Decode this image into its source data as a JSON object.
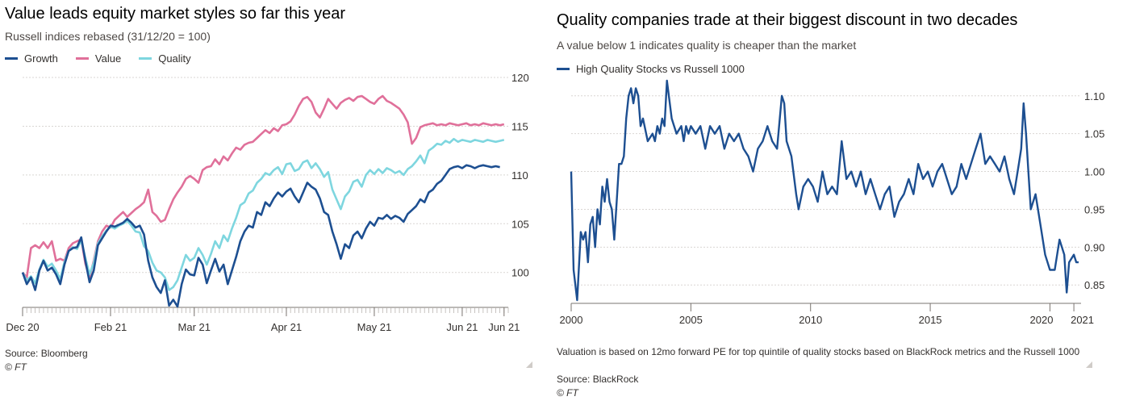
{
  "colors": {
    "growth": "#1d4f91",
    "value": "#e0709a",
    "quality": "#7ed6df",
    "hq": "#1d4f91",
    "grid": "#d9d6d3",
    "axis": "#7a7470"
  },
  "left": {
    "title": "Value leads equity market styles so far this year",
    "subtitle": "Russell indices rebased (31/12/20 = 100)",
    "legend": [
      "Growth",
      "Value",
      "Quality"
    ],
    "source": "Source: Bloomberg",
    "credit": "© FT"
  },
  "right": {
    "title": "Quality companies trade at their biggest discount in two decades",
    "subtitle": "A value below 1 indicates quality is cheaper than the market",
    "legend": [
      "High Quality Stocks vs Russell 1000"
    ],
    "note": "Valuation is based on 12mo forward PE for top quintile of quality stocks based on BlackRock metrics and the Russell 1000",
    "source": "Source: BlackRock",
    "credit": "© FT"
  },
  "chart_data": [
    {
      "type": "line",
      "title": "Value leads equity market styles so far this year",
      "subtitle": "Russell indices rebased (31/12/20 = 100)",
      "xlabel": "",
      "ylabel": "",
      "x_ticks": [
        "Dec 20",
        "Feb 21",
        "Mar 21",
        "Apr 21",
        "May 21",
        "Jun 21",
        "Jun 21"
      ],
      "x_tick_pos": [
        0,
        21,
        41,
        63,
        84,
        105,
        115
      ],
      "x_range": [
        0,
        116
      ],
      "ylim": [
        96.5,
        120.5
      ],
      "y_ticks": [
        100,
        105,
        110,
        115,
        120
      ],
      "grid": true,
      "legend_position": "top-left",
      "series": [
        {
          "name": "Growth",
          "color": "#1d4f91",
          "values": [
            100,
            98.8,
            99.5,
            98.2,
            100.2,
            101.2,
            100.2,
            100.5,
            99.8,
            98.8,
            100.8,
            102.2,
            102.5,
            102.6,
            103.6,
            101.2,
            99,
            100.2,
            102.8,
            103.5,
            104.2,
            104.8,
            104.7,
            104.9,
            105.1,
            105.5,
            105.1,
            104.6,
            104.8,
            103.9,
            101.2,
            99.5,
            98.5,
            97.9,
            99.2,
            96.6,
            97.2,
            96.5,
            98.8,
            100.3,
            99.8,
            99.7,
            101.5,
            100.8,
            98.9,
            100.2,
            101.4,
            100.1,
            100.8,
            98.8,
            100.2,
            101.6,
            103.2,
            104.2,
            104.8,
            104.6,
            106.2,
            105.9,
            107.2,
            106.8,
            107.6,
            108.2,
            107.8,
            108.3,
            108.6,
            107.8,
            107.2,
            108.2,
            109.2,
            108.8,
            108.5,
            107.6,
            106.2,
            105.9,
            104.2,
            102.9,
            101.4,
            102.9,
            102.5,
            103.8,
            104.2,
            103.5,
            104.5,
            105.2,
            104.8,
            105.6,
            105.5,
            105.9,
            105.5,
            105.8,
            105.6,
            105.2,
            106,
            106.4,
            106.8,
            107.5,
            107.2,
            108.2,
            108.5,
            109.1,
            109.4,
            110,
            110.6,
            110.8,
            110.9,
            110.7,
            111,
            110.9,
            110.7,
            110.9,
            111,
            110.9,
            110.8,
            110.9,
            110.8
          ]
        },
        {
          "name": "Value",
          "color": "#e0709a",
          "values": [
            100,
            99.5,
            102.5,
            102.8,
            102.5,
            103.1,
            102.5,
            103.2,
            101.2,
            101.4,
            101.2,
            102.5,
            103,
            103.2,
            103.4,
            100.9,
            99.5,
            101.2,
            103.2,
            104.2,
            104.8,
            104.6,
            105.4,
            105.8,
            106.2,
            105.7,
            106.1,
            106.5,
            106.8,
            107.2,
            108.5,
            106.2,
            105.8,
            105.2,
            105.4,
            106.5,
            107.5,
            108.2,
            108.8,
            109.6,
            109.9,
            109.6,
            109.2,
            110.5,
            110.8,
            110.9,
            111.6,
            111.1,
            111.9,
            111.5,
            112.2,
            112.8,
            112.6,
            113.1,
            113.3,
            113.4,
            113.8,
            114.2,
            114.6,
            114.3,
            114.8,
            114.5,
            115.1,
            115.2,
            115.5,
            116.2,
            117.1,
            117.8,
            118,
            117.5,
            116.4,
            115.9,
            116.8,
            117.8,
            117.3,
            116.8,
            117.4,
            117.7,
            117.9,
            117.6,
            118,
            118.1,
            117.8,
            117.5,
            117.3,
            117.8,
            118.1,
            117.6,
            117.4,
            117.1,
            116.8,
            116.2,
            115.4,
            113.2,
            113.8,
            114.9,
            115.1,
            115.2,
            115.3,
            115.1,
            115.2,
            115.1,
            115.3,
            115.2,
            115.1,
            115.2,
            115.3,
            115.1,
            115.2,
            115.1,
            115.3,
            115.2,
            115.1,
            115.2,
            115.1,
            115.2
          ]
        },
        {
          "name": "Quality",
          "color": "#7ed6df",
          "values": [
            100,
            99.2,
            99.6,
            98.9,
            100.3,
            101.3,
            100.6,
            100.9,
            100.2,
            99.3,
            101.1,
            102.2,
            102.6,
            102.4,
            103.3,
            101.5,
            99.8,
            101,
            103,
            103.7,
            104.3,
            104.7,
            104.5,
            104.8,
            105,
            105.3,
            104.8,
            104.2,
            104.1,
            102.7,
            102.2,
            101,
            100.2,
            100,
            99.5,
            98.2,
            98.5,
            99.2,
            100.5,
            101.8,
            101.2,
            101.5,
            102.5,
            101.8,
            100.8,
            101.9,
            103.2,
            102.5,
            103.8,
            103.2,
            104.5,
            105.6,
            106.9,
            107.2,
            108.1,
            108.4,
            109.2,
            109.6,
            110.2,
            110,
            110.5,
            110.8,
            110.1,
            111.1,
            111.2,
            110.4,
            110.6,
            111.3,
            111.5,
            110.7,
            111.2,
            110.6,
            109.8,
            110.3,
            108.5,
            107.5,
            106.5,
            107.8,
            108.3,
            109.3,
            109.5,
            108.8,
            110,
            110.5,
            110.1,
            110.6,
            110.2,
            110.7,
            110.5,
            110.2,
            110.4,
            110,
            110.6,
            110.9,
            111.4,
            112,
            111.2,
            112.5,
            112.8,
            113.2,
            113.1,
            113.5,
            113.3,
            113.7,
            113.4,
            113.6,
            113.5,
            113.4,
            113.6,
            113.5,
            113.4,
            113.6,
            113.5,
            113.4,
            113.5,
            113.6
          ]
        }
      ]
    },
    {
      "type": "line",
      "title": "Quality companies trade at their biggest discount in two decades",
      "subtitle": "A value below 1 indicates quality is cheaper than the market",
      "xlabel": "",
      "ylabel": "",
      "x_ticks": [
        2000,
        2005,
        2010,
        2015,
        2020,
        2021
      ],
      "x_range": [
        2000,
        2021.3
      ],
      "ylim": [
        0.83,
        1.12
      ],
      "y_ticks": [
        0.85,
        0.9,
        0.95,
        1.0,
        1.05,
        1.1
      ],
      "y_tick_labels": [
        "0.85",
        "0.90",
        "0.95",
        "1.00",
        "1.05",
        "1.10"
      ],
      "grid": true,
      "legend_position": "top-left",
      "series": [
        {
          "name": "High Quality Stocks vs Russell 1000",
          "color": "#1d4f91",
          "x": [
            2000,
            2000.1,
            2000.25,
            2000.4,
            2000.5,
            2000.6,
            2000.7,
            2000.8,
            2000.9,
            2001,
            2001.1,
            2001.2,
            2001.3,
            2001.4,
            2001.5,
            2001.6,
            2001.7,
            2001.8,
            2001.9,
            2002,
            2002.1,
            2002.2,
            2002.3,
            2002.4,
            2002.5,
            2002.6,
            2002.7,
            2002.8,
            2002.9,
            2003,
            2003.2,
            2003.4,
            2003.5,
            2003.6,
            2003.7,
            2003.8,
            2003.9,
            2004,
            2004.2,
            2004.4,
            2004.6,
            2004.7,
            2004.8,
            2004.9,
            2005,
            2005.2,
            2005.4,
            2005.6,
            2005.8,
            2006,
            2006.2,
            2006.4,
            2006.6,
            2006.8,
            2007,
            2007.2,
            2007.4,
            2007.6,
            2007.8,
            2008,
            2008.2,
            2008.4,
            2008.6,
            2008.8,
            2008.9,
            2009,
            2009.2,
            2009.4,
            2009.5,
            2009.7,
            2009.9,
            2010.1,
            2010.3,
            2010.5,
            2010.7,
            2010.9,
            2011.1,
            2011.3,
            2011.5,
            2011.7,
            2011.9,
            2012.1,
            2012.3,
            2012.5,
            2012.7,
            2012.9,
            2013.1,
            2013.3,
            2013.5,
            2013.7,
            2013.9,
            2014.1,
            2014.3,
            2014.5,
            2014.7,
            2014.9,
            2015.1,
            2015.3,
            2015.5,
            2015.7,
            2015.9,
            2016.1,
            2016.3,
            2016.5,
            2016.7,
            2016.9,
            2017.1,
            2017.3,
            2017.5,
            2017.7,
            2017.9,
            2018.1,
            2018.3,
            2018.5,
            2018.7,
            2018.8,
            2018.9,
            2019,
            2019.1,
            2019.2,
            2019.4,
            2019.6,
            2019.8,
            2020,
            2020.2,
            2020.4,
            2020.6,
            2020.7,
            2020.8,
            2021,
            2021.1,
            2021.2
          ],
          "values": [
            1.0,
            0.87,
            0.83,
            0.92,
            0.91,
            0.92,
            0.88,
            0.93,
            0.94,
            0.9,
            0.95,
            0.93,
            0.98,
            0.96,
            0.99,
            0.96,
            0.95,
            0.91,
            0.96,
            1.01,
            1.01,
            1.02,
            1.07,
            1.1,
            1.11,
            1.09,
            1.11,
            1.1,
            1.06,
            1.07,
            1.04,
            1.05,
            1.04,
            1.06,
            1.05,
            1.07,
            1.06,
            1.12,
            1.07,
            1.05,
            1.06,
            1.04,
            1.06,
            1.05,
            1.06,
            1.05,
            1.06,
            1.03,
            1.06,
            1.05,
            1.06,
            1.03,
            1.05,
            1.04,
            1.05,
            1.03,
            1.02,
            1.0,
            1.03,
            1.04,
            1.06,
            1.04,
            1.03,
            1.1,
            1.09,
            1.04,
            1.02,
            0.97,
            0.95,
            0.98,
            0.99,
            0.98,
            0.96,
            1.0,
            0.97,
            0.98,
            0.97,
            1.04,
            0.99,
            1.0,
            0.98,
            1.0,
            0.97,
            0.99,
            0.97,
            0.95,
            0.97,
            0.98,
            0.94,
            0.96,
            0.97,
            0.99,
            0.97,
            1.01,
            0.99,
            1.0,
            0.98,
            1.0,
            1.01,
            0.99,
            0.97,
            0.98,
            1.01,
            0.99,
            1.01,
            1.03,
            1.05,
            1.01,
            1.02,
            1.01,
            1.0,
            1.02,
            0.99,
            0.97,
            1.01,
            1.03,
            1.09,
            1.05,
            1.0,
            0.95,
            0.97,
            0.93,
            0.89,
            0.87,
            0.87,
            0.91,
            0.89,
            0.84,
            0.88,
            0.89,
            0.88,
            0.88
          ]
        }
      ]
    }
  ]
}
